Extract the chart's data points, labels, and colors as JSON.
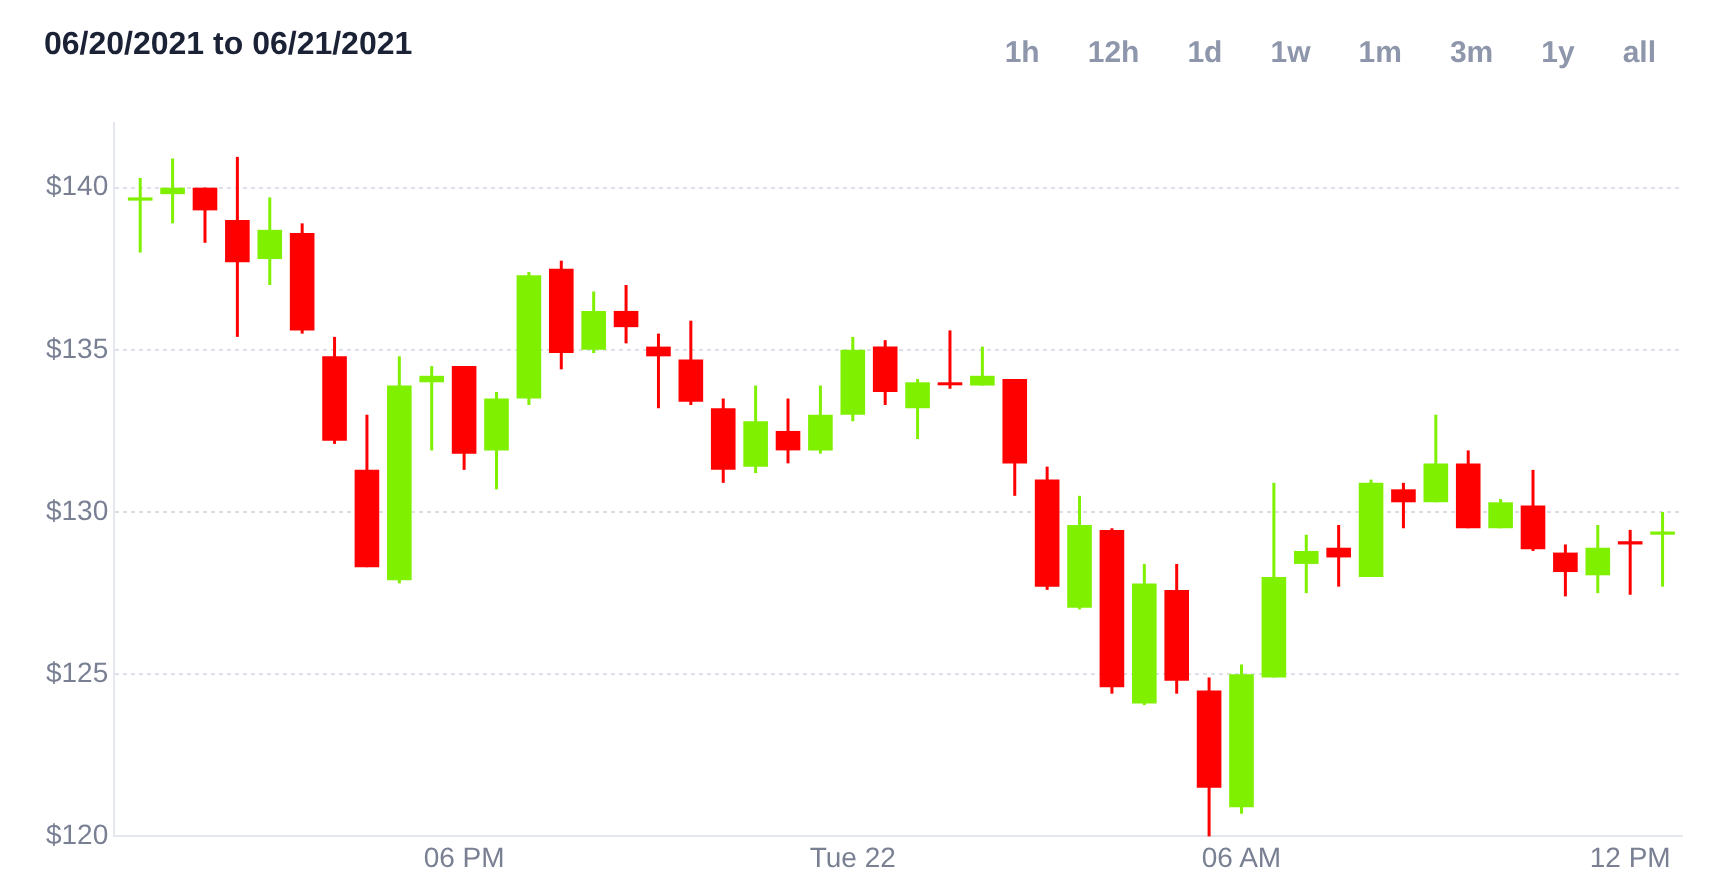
{
  "chart_data": {
    "type": "candlestick",
    "title": "06/20/2021 to 06/21/2021",
    "annotations": [
      "1h",
      "12h",
      "1d",
      "1w",
      "1m",
      "3m",
      "1y",
      "all"
    ],
    "x": [
      -11,
      -10.5,
      -10,
      -9.5,
      -9,
      -8.5,
      -8,
      -7.5,
      -7,
      -6.5,
      -6,
      -5.5,
      -5,
      -4.5,
      -4,
      -3.5,
      -3,
      -2.5,
      -2,
      -1.5,
      -1,
      -0.5,
      0,
      0.5,
      1,
      1.5,
      2,
      2.5,
      3,
      3.5,
      4,
      4.5,
      5,
      5.5,
      6,
      6.5,
      7,
      7.5,
      8,
      8.5,
      9,
      9.5,
      10,
      10.5,
      11,
      11.5,
      12,
      12.5
    ],
    "ohlc": [
      [
        139.6,
        140.3,
        138.0,
        139.7
      ],
      [
        139.8,
        140.9,
        138.9,
        140.0
      ],
      [
        140.0,
        140.0,
        138.3,
        139.3
      ],
      [
        139.0,
        140.95,
        135.4,
        137.7
      ],
      [
        137.8,
        139.7,
        137.0,
        138.7
      ],
      [
        138.6,
        138.9,
        135.5,
        135.6
      ],
      [
        134.8,
        135.4,
        132.1,
        132.2
      ],
      [
        131.3,
        133.0,
        128.3,
        128.3
      ],
      [
        127.9,
        134.8,
        127.8,
        133.9
      ],
      [
        134.0,
        134.5,
        131.9,
        134.2
      ],
      [
        134.5,
        134.5,
        131.3,
        131.8
      ],
      [
        131.9,
        133.7,
        130.7,
        133.5
      ],
      [
        133.5,
        137.4,
        133.3,
        137.3
      ],
      [
        137.5,
        137.75,
        134.4,
        134.9
      ],
      [
        135.0,
        136.8,
        134.9,
        136.2
      ],
      [
        136.2,
        137.0,
        135.2,
        135.7
      ],
      [
        135.1,
        135.5,
        133.2,
        134.8
      ],
      [
        134.7,
        135.9,
        133.3,
        133.4
      ],
      [
        133.2,
        133.5,
        130.9,
        131.3
      ],
      [
        131.4,
        133.9,
        131.2,
        132.8
      ],
      [
        132.5,
        133.5,
        131.5,
        131.9
      ],
      [
        131.9,
        133.9,
        131.8,
        133.0
      ],
      [
        133.0,
        135.4,
        132.8,
        135.0
      ],
      [
        135.1,
        135.3,
        133.3,
        133.7
      ],
      [
        133.2,
        134.1,
        132.25,
        134.0
      ],
      [
        134.0,
        135.6,
        133.8,
        133.95
      ],
      [
        133.9,
        135.1,
        133.9,
        134.2
      ],
      [
        134.1,
        134.1,
        130.5,
        131.5
      ],
      [
        131.0,
        131.4,
        127.6,
        127.7
      ],
      [
        127.05,
        130.5,
        127.0,
        129.6
      ],
      [
        129.45,
        129.5,
        124.4,
        124.6
      ],
      [
        124.1,
        128.4,
        124.05,
        127.8
      ],
      [
        127.6,
        128.4,
        124.4,
        124.8
      ],
      [
        124.5,
        124.9,
        120.0,
        121.5
      ],
      [
        120.9,
        125.3,
        120.7,
        125.0
      ],
      [
        124.9,
        130.9,
        124.9,
        128.0
      ],
      [
        128.4,
        129.3,
        127.5,
        128.8
      ],
      [
        128.9,
        129.6,
        127.7,
        128.6
      ],
      [
        128.0,
        131.0,
        128.0,
        130.9
      ],
      [
        130.7,
        130.9,
        129.5,
        130.3
      ],
      [
        130.3,
        133.0,
        130.3,
        131.5
      ],
      [
        131.5,
        131.9,
        129.5,
        129.5
      ],
      [
        129.5,
        130.4,
        129.5,
        130.3
      ],
      [
        130.2,
        131.3,
        128.8,
        128.85
      ],
      [
        128.75,
        129.0,
        127.4,
        128.15
      ],
      [
        128.05,
        129.6,
        127.5,
        128.9
      ],
      [
        129.1,
        129.45,
        127.45,
        129.0
      ],
      [
        129.3,
        130.0,
        127.7,
        129.4
      ]
    ],
    "colors": [
      "#7ff000",
      "#7ff000",
      "#ff0000",
      "#ff0000",
      "#7ff000",
      "#ff0000",
      "#ff0000",
      "#ff0000",
      "#7ff000",
      "#7ff000",
      "#ff0000",
      "#7ff000",
      "#7ff000",
      "#ff0000",
      "#7ff000",
      "#ff0000",
      "#ff0000",
      "#ff0000",
      "#ff0000",
      "#7ff000",
      "#ff0000",
      "#7ff000",
      "#7ff000",
      "#ff0000",
      "#7ff000",
      "#ff0000",
      "#7ff000",
      "#ff0000",
      "#ff0000",
      "#7ff000",
      "#ff0000",
      "#7ff000",
      "#ff0000",
      "#ff0000",
      "#7ff000",
      "#7ff000",
      "#7ff000",
      "#ff0000",
      "#7ff000",
      "#ff0000",
      "#7ff000",
      "#ff0000",
      "#7ff000",
      "#ff0000",
      "#ff0000",
      "#7ff000",
      "#ff0000",
      "#7ff000"
    ],
    "xlim": [
      -11.4,
      12.8
    ],
    "xticks": [
      {
        "value": -6,
        "label": "06 PM"
      },
      {
        "value": 0,
        "label": "Tue 22"
      },
      {
        "value": 6,
        "label": "06 AM"
      },
      {
        "value": 12,
        "label": "12 PM"
      }
    ],
    "ylim": [
      120,
      142
    ],
    "yticks": [
      {
        "value": 120,
        "label": "$120"
      },
      {
        "value": 125,
        "label": "$125"
      },
      {
        "value": 130,
        "label": "$130"
      },
      {
        "value": 135,
        "label": "$135"
      },
      {
        "value": 140,
        "label": "$140"
      }
    ],
    "grid": "y"
  }
}
